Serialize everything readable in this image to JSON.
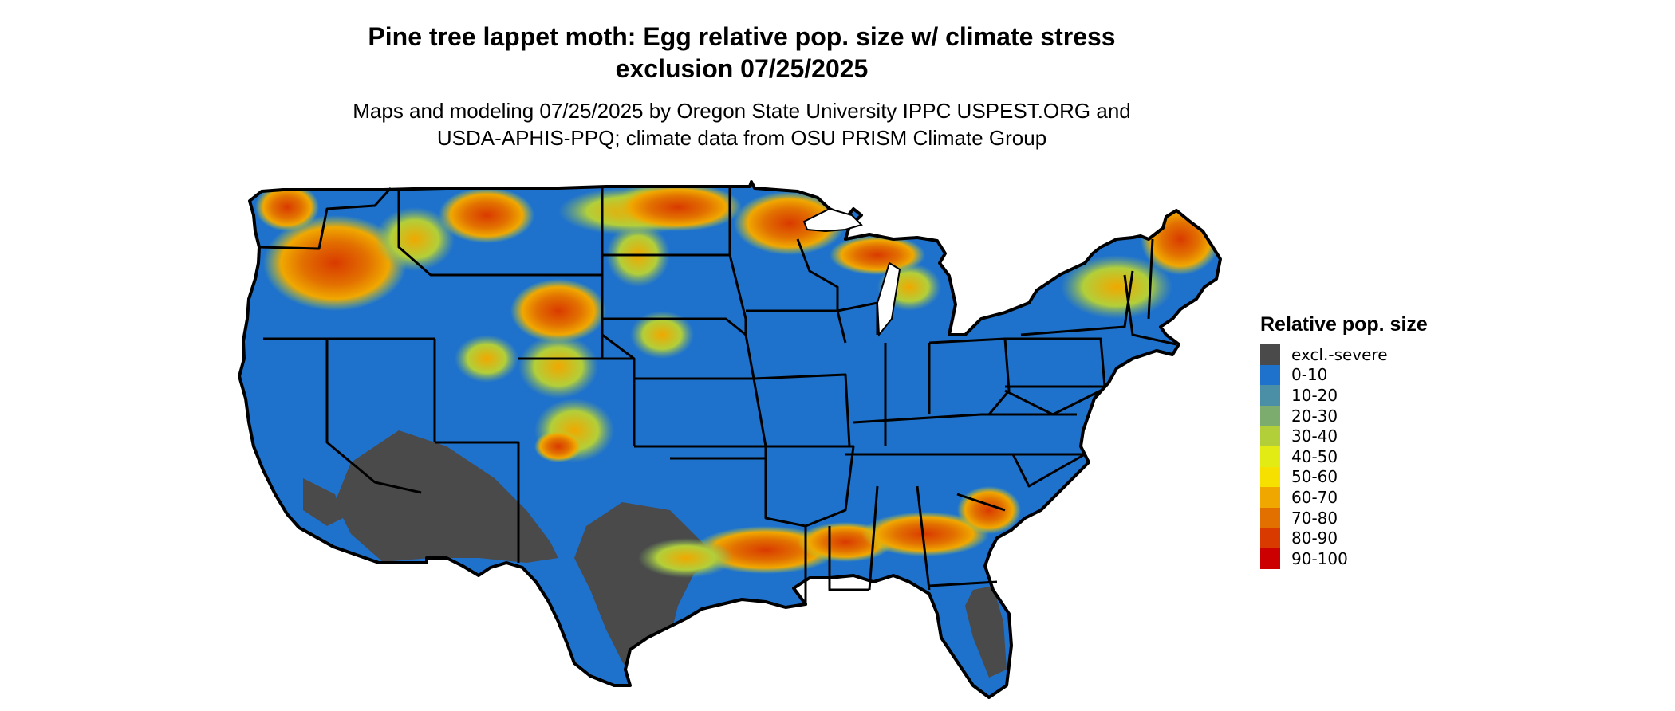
{
  "map": {
    "title_line1": "Pine tree lappet moth: Egg relative pop. size w/ climate stress",
    "title_line2": "exclusion 07/25/2025",
    "subtitle_line1": "Maps and modeling 07/25/2025 by Oregon State University IPPC USPEST.ORG and",
    "subtitle_line2": "USDA-APHIS-PPQ; climate data from OSU PRISM Climate Group",
    "region": "contiguous-united-states",
    "land_base_color": "#1f72cc",
    "border_color": "#000000"
  },
  "legend": {
    "title": "Relative pop. size",
    "items": [
      {
        "label": "excl.-severe",
        "color": "#4a4a4a"
      },
      {
        "label": "0-10",
        "color": "#1f72cc"
      },
      {
        "label": "10-20",
        "color": "#4b8fa6"
      },
      {
        "label": "20-30",
        "color": "#7cad6e"
      },
      {
        "label": "30-40",
        "color": "#b2cf3a"
      },
      {
        "label": "40-50",
        "color": "#e2ec14"
      },
      {
        "label": "50-60",
        "color": "#f5e000"
      },
      {
        "label": "60-70",
        "color": "#f0a800"
      },
      {
        "label": "70-80",
        "color": "#e27000"
      },
      {
        "label": "80-90",
        "color": "#d93a00"
      },
      {
        "label": "90-100",
        "color": "#cc0000"
      }
    ]
  }
}
